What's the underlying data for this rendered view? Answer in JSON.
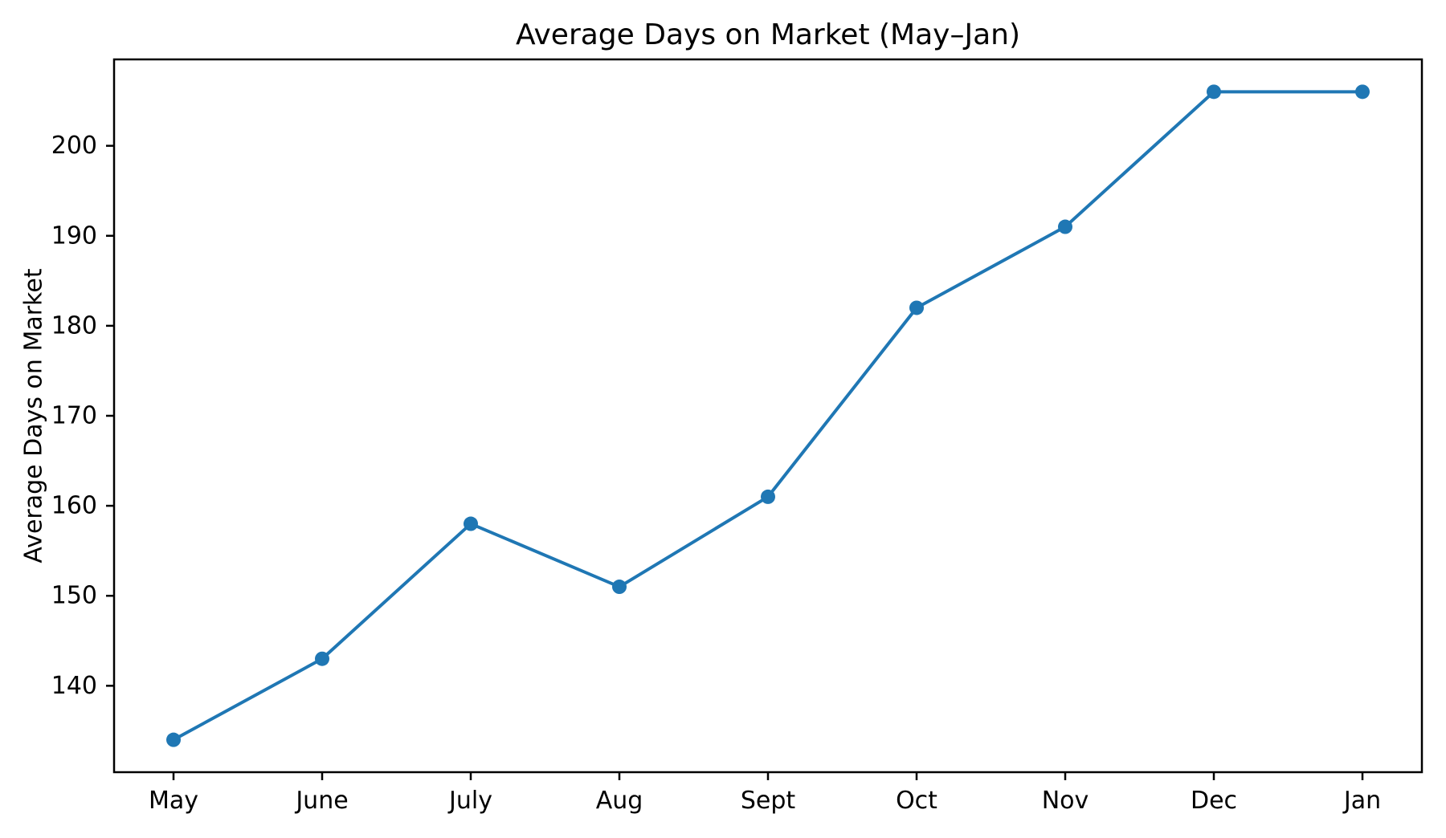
{
  "chart_data": {
    "type": "line",
    "title": "Average Days on Market (May–Jan)",
    "xlabel": "",
    "ylabel": "Average Days on Market",
    "categories": [
      "May",
      "June",
      "July",
      "Aug",
      "Sept",
      "Oct",
      "Nov",
      "Dec",
      "Jan"
    ],
    "series": [
      {
        "name": "Average Days on Market",
        "values": [
          134,
          143,
          158,
          151,
          161,
          182,
          191,
          206,
          206
        ]
      }
    ],
    "yticks": [
      140,
      150,
      160,
      170,
      180,
      190,
      200
    ],
    "ylim": [
      130.4,
      209.6
    ],
    "xlim": [
      -0.4,
      8.4
    ],
    "grid": false,
    "legend_position": "none",
    "line_color": "#1f77b4",
    "marker": "circle",
    "axis_color": "#000000",
    "background_color": "#ffffff"
  }
}
